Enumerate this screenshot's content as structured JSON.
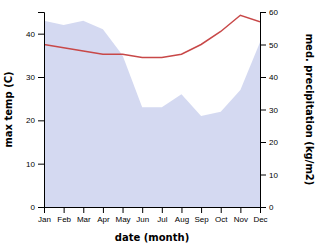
{
  "chart_data": {
    "type": "area",
    "xlabel": "date (month)",
    "ylabel": "max temp (C)",
    "y2label": "med. precipitation (kg/m2)",
    "categories": [
      "Jan",
      "Feb",
      "Mar",
      "Apr",
      "May",
      "Jun",
      "Jul",
      "Aug",
      "Sep",
      "Oct",
      "Nov",
      "Dec"
    ],
    "series": [
      {
        "type": "area",
        "color": "#b8c0e8",
        "values": [
          43,
          42,
          43,
          41,
          35,
          23,
          23,
          26,
          21,
          22,
          27,
          38
        ]
      },
      {
        "type": "line",
        "axis": "y2",
        "color": "#c84848",
        "values": [
          50,
          49,
          48,
          47,
          47,
          46,
          46,
          47,
          50,
          54,
          59,
          57
        ]
      }
    ],
    "ylim": [
      0,
      45
    ],
    "yticks": [
      0,
      10,
      20,
      30,
      40
    ],
    "y2lim": [
      0,
      60
    ],
    "y2ticks": [
      0,
      10,
      20,
      30,
      40,
      50,
      60
    ],
    "grid": false
  }
}
